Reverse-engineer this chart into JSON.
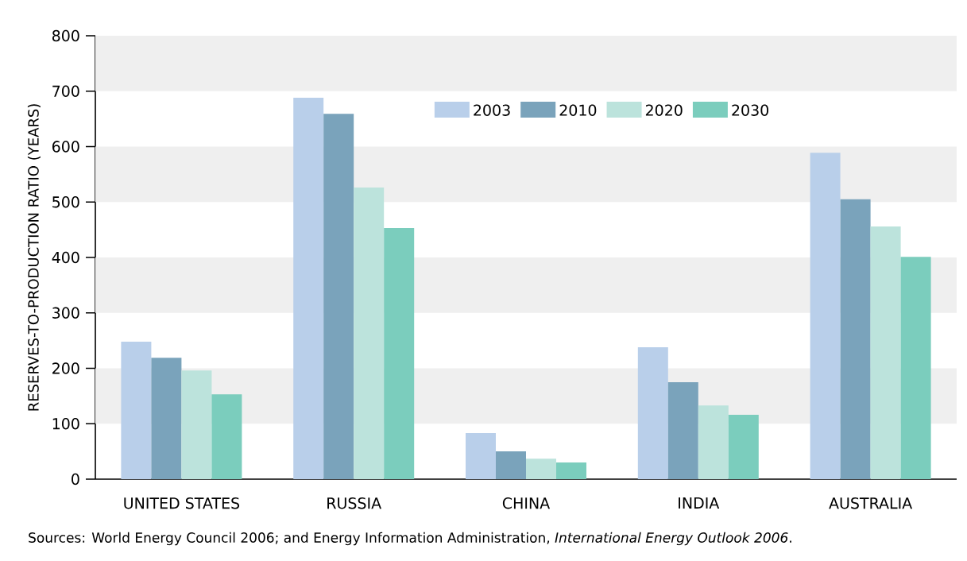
{
  "chart_data": {
    "type": "bar",
    "ylabel": "RESERVES-TO-PRODUCTION RATIO (YEARS)",
    "categories": [
      "UNITED STATES",
      "RUSSIA",
      "CHINA",
      "INDIA",
      "AUSTRALIA"
    ],
    "series": [
      {
        "name": "2003",
        "color": "#b9cfea",
        "values": [
          248,
          688,
          83,
          238,
          589
        ]
      },
      {
        "name": "2010",
        "color": "#7aa3bb",
        "values": [
          219,
          659,
          50,
          175,
          505
        ]
      },
      {
        "name": "2020",
        "color": "#bce3dc",
        "values": [
          196,
          526,
          37,
          133,
          456
        ]
      },
      {
        "name": "2030",
        "color": "#7bcdbd",
        "values": [
          153,
          453,
          30,
          116,
          401
        ]
      }
    ],
    "ylim": [
      0,
      800
    ],
    "yticks": [
      0,
      100,
      200,
      300,
      400,
      500,
      600,
      700,
      800
    ],
    "bands": [
      {
        "axis": "y",
        "from": 100,
        "to": 200,
        "color": "#efefef"
      },
      {
        "axis": "y",
        "from": 300,
        "to": 400,
        "color": "#efefef"
      },
      {
        "axis": "y",
        "from": 500,
        "to": 600,
        "color": "#efefef"
      },
      {
        "axis": "y",
        "from": 700,
        "to": 800,
        "color": "#efefef"
      }
    ],
    "legend": "top",
    "annotations": [
      "Sources:  World Energy Council 2006; and Energy Information Administration, *International Energy Outlook 2006*."
    ]
  }
}
